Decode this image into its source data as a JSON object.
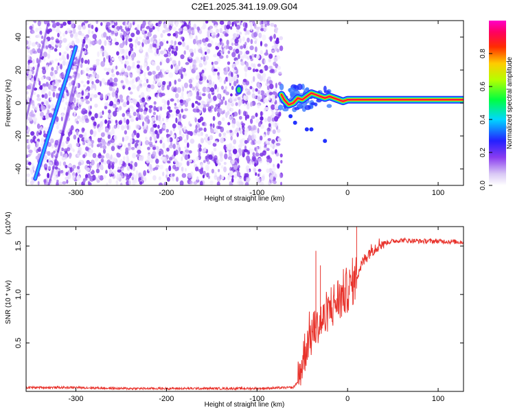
{
  "figure_title": "C2E1.2025.341.19.09.G04",
  "chart_data": [
    {
      "type": "heatmap",
      "title": "C2E1.2025.341.19.09.G04",
      "xlabel": "Height of straight line (km)",
      "ylabel": "Frequency (Hz)",
      "xlim": [
        -355,
        128
      ],
      "ylim": [
        -50,
        50
      ],
      "xticks": [
        -300,
        -200,
        -100,
        0,
        100
      ],
      "yticks": [
        -40,
        -20,
        0,
        20,
        40
      ],
      "colorbar": {
        "label": "Normalized spectral amplitude",
        "range": [
          0,
          1
        ],
        "ticks": [
          "0.0",
          "0.2",
          "0.4",
          "0.6",
          "0.8"
        ],
        "colormap": "rainbow (white-purple-blue-cyan-green-yellow-red-magenta)"
      },
      "noise_region": {
        "x": [
          -355,
          -73
        ],
        "level": "low (purple/white)"
      },
      "diagonal_track": {
        "points": [
          [
            -345,
            -46
          ],
          [
            -300,
            34
          ]
        ],
        "level": "medium (blue/cyan)"
      },
      "feature_at": {
        "x": -120,
        "y": 8,
        "level": "medium"
      },
      "ridge": {
        "points": [
          [
            -73,
            5
          ],
          [
            -70,
            2
          ],
          [
            -65,
            -1
          ],
          [
            -60,
            0
          ],
          [
            -55,
            3
          ],
          [
            -50,
            2
          ],
          [
            -45,
            4
          ],
          [
            -40,
            6
          ],
          [
            -35,
            5
          ],
          [
            -30,
            4
          ],
          [
            -25,
            3
          ],
          [
            -20,
            4
          ],
          [
            -15,
            3
          ],
          [
            -10,
            2
          ],
          [
            -5,
            1
          ],
          [
            0,
            2
          ],
          [
            10,
            2
          ],
          [
            20,
            2
          ],
          [
            40,
            2
          ],
          [
            60,
            2
          ],
          [
            80,
            2
          ],
          [
            100,
            2
          ],
          [
            128,
            2
          ]
        ],
        "level": "high (red core)"
      },
      "grid": false
    },
    {
      "type": "line",
      "xlabel": "Height of straight line (km)",
      "ylabel": "SNR (10 * v/v)",
      "y_multiplier": "(x10^4)",
      "xlim": [
        -355,
        128
      ],
      "ylim": [
        0,
        1.7
      ],
      "xticks": [
        -300,
        -200,
        -100,
        0,
        100
      ],
      "yticks": [
        "0.5",
        "1.0",
        "1.5"
      ],
      "color": "#e8322b",
      "series": [
        {
          "x": [
            -355,
            -300,
            -250,
            -200,
            -150,
            -100,
            -60,
            -55,
            -50,
            -45,
            -40,
            -35,
            -30,
            -25,
            -20,
            -15,
            -10,
            -5,
            0,
            5,
            10,
            15,
            20,
            25,
            30,
            35,
            40,
            50,
            60,
            80,
            100,
            128
          ],
          "y": [
            0.04,
            0.04,
            0.03,
            0.03,
            0.03,
            0.03,
            0.04,
            0.1,
            0.3,
            0.5,
            0.6,
            0.65,
            0.7,
            0.75,
            0.85,
            0.9,
            0.95,
            1.0,
            1.05,
            1.1,
            1.2,
            1.3,
            1.38,
            1.45,
            1.48,
            1.52,
            1.53,
            1.55,
            1.56,
            1.55,
            1.55,
            1.54
          ]
        }
      ],
      "grid": false
    }
  ]
}
